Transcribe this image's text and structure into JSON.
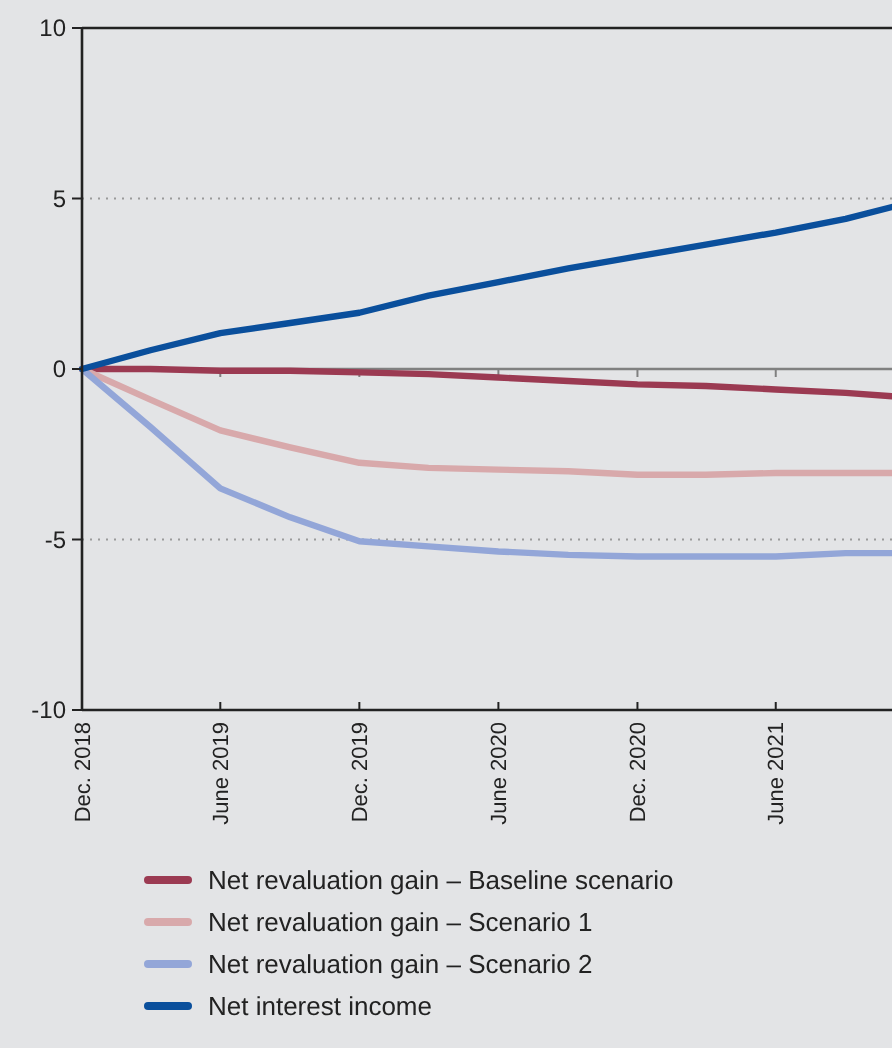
{
  "chart_data": {
    "type": "line",
    "x": [
      "2018-12",
      "2019-03",
      "2019-06",
      "2019-09",
      "2019-12",
      "2020-03",
      "2020-06",
      "2020-09",
      "2020-12",
      "2021-03",
      "2021-06",
      "2021-09",
      "2021-11"
    ],
    "series": [
      {
        "name": "Net revaluation gain – Baseline scenario",
        "color": "#9b3a52",
        "values": [
          0,
          0,
          -0.05,
          -0.05,
          -0.1,
          -0.15,
          -0.25,
          -0.35,
          -0.45,
          -0.5,
          -0.6,
          -0.7,
          -0.8
        ]
      },
      {
        "name": "Net revaluation gain – Scenario 1",
        "color": "#d8a9ab",
        "values": [
          0,
          -0.9,
          -1.8,
          -2.3,
          -2.75,
          -2.9,
          -2.95,
          -3.0,
          -3.1,
          -3.1,
          -3.05,
          -3.05,
          -3.05
        ]
      },
      {
        "name": "Net revaluation gain – Scenario 2",
        "color": "#93a6d8",
        "values": [
          0,
          -1.7,
          -3.5,
          -4.35,
          -5.05,
          -5.2,
          -5.35,
          -5.45,
          -5.5,
          -5.5,
          -5.5,
          -5.4,
          -5.4
        ]
      },
      {
        "name": "Net interest income",
        "color": "#0a4f9c",
        "values": [
          0,
          0.55,
          1.05,
          1.35,
          1.65,
          2.15,
          2.55,
          2.95,
          3.3,
          3.65,
          4.0,
          4.4,
          4.75
        ]
      }
    ],
    "xlim": [
      "2018-12",
      "2021-11"
    ],
    "xticks": [
      {
        "value": "2018-12",
        "label": "Dec. 2018"
      },
      {
        "value": "2019-06",
        "label": "June 2019"
      },
      {
        "value": "2019-12",
        "label": "Dec. 2019"
      },
      {
        "value": "2020-06",
        "label": "June 2020"
      },
      {
        "value": "2020-12",
        "label": "Dec. 2020"
      },
      {
        "value": "2021-06",
        "label": "June 2021"
      }
    ],
    "ylim": [
      -10,
      10
    ],
    "yticks": [
      -10,
      -5,
      0,
      5,
      10
    ],
    "grid": "y",
    "ref_lines": [
      {
        "axis": "y",
        "value": 0,
        "color": "#808080"
      }
    ],
    "legend": "bottom",
    "line_style": "solid"
  }
}
